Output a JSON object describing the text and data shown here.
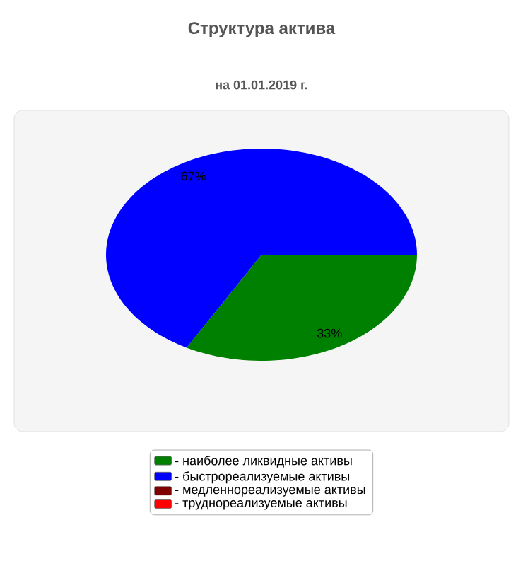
{
  "chart_data": {
    "type": "pie",
    "title": "Структура актива",
    "subtitle": "на 01.01.2019 г.",
    "categories": [
      "- наиболее ликвидные активы",
      "- быстрореализуемые активы",
      "- медленнореализуемые активы",
      "- труднореализуемые активы"
    ],
    "values": [
      33,
      67,
      0,
      0
    ],
    "colors": [
      "#008000",
      "#0000ff",
      "#800000",
      "#ff0000"
    ],
    "value_labels": [
      "33%",
      "67%",
      null,
      null
    ],
    "legend": "bottom"
  }
}
